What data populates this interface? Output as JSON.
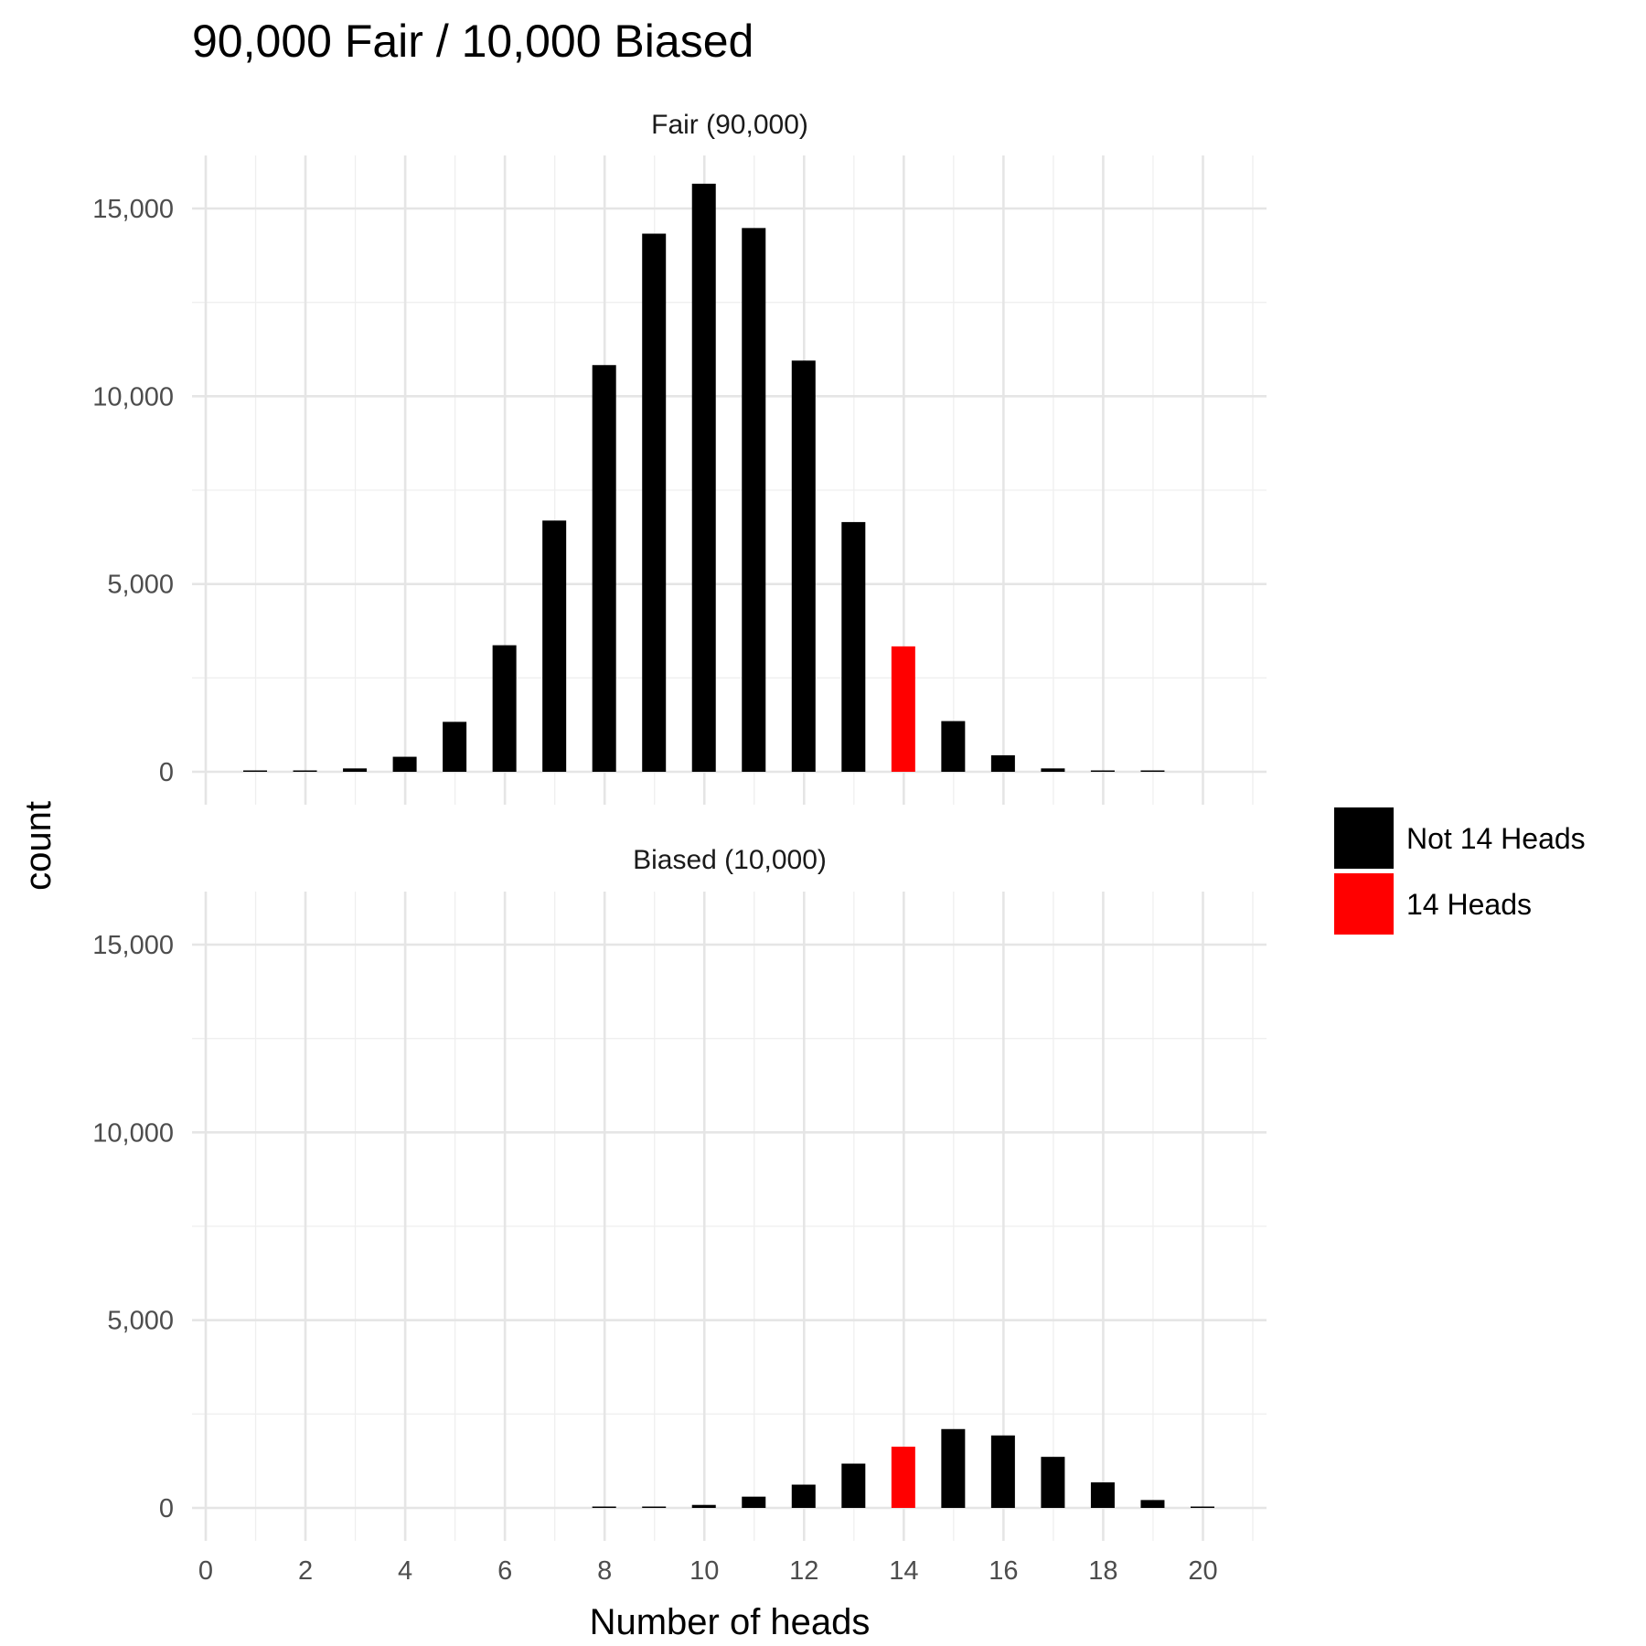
{
  "chart_data": {
    "type": "bar",
    "title": "90,000 Fair / 10,000 Biased",
    "xlabel": "Number of heads",
    "ylabel": "count",
    "xlim": [
      0,
      21
    ],
    "ylim": [
      0,
      16500
    ],
    "x_ticks": [
      "0",
      "2",
      "4",
      "6",
      "8",
      "10",
      "12",
      "14",
      "16",
      "18",
      "20"
    ],
    "y_ticks": [
      "0",
      "5,000",
      "10,000",
      "15,000"
    ],
    "y_tick_values": [
      0,
      5000,
      10000,
      15000
    ],
    "grid": true,
    "legend": {
      "placement": "right",
      "entries": [
        {
          "label": "Not 14 Heads",
          "color": "#000000"
        },
        {
          "label": "14 Heads",
          "color": "#ff0000"
        }
      ]
    },
    "panels": [
      {
        "label": "Fair (90,000)",
        "x": [
          0,
          1,
          2,
          3,
          4,
          5,
          6,
          7,
          8,
          9,
          10,
          11,
          12,
          13,
          14,
          15,
          16,
          17,
          18,
          19,
          20
        ],
        "values": [
          0,
          16,
          20,
          90,
          400,
          1330,
          3370,
          6690,
          10830,
          14330,
          15660,
          14480,
          10950,
          6650,
          3340,
          1350,
          440,
          90,
          20,
          10,
          0
        ]
      },
      {
        "label": "Biased (10,000)",
        "x": [
          0,
          1,
          2,
          3,
          4,
          5,
          6,
          7,
          8,
          9,
          10,
          11,
          12,
          13,
          14,
          15,
          16,
          17,
          18,
          19,
          20
        ],
        "values": [
          0,
          0,
          0,
          0,
          0,
          0,
          0,
          0,
          10,
          20,
          80,
          300,
          620,
          1180,
          1630,
          2100,
          1930,
          1360,
          680,
          210,
          30
        ]
      }
    ],
    "highlight_x": 14,
    "colors": {
      "default": "#000000",
      "highlight": "#ff0000"
    }
  }
}
